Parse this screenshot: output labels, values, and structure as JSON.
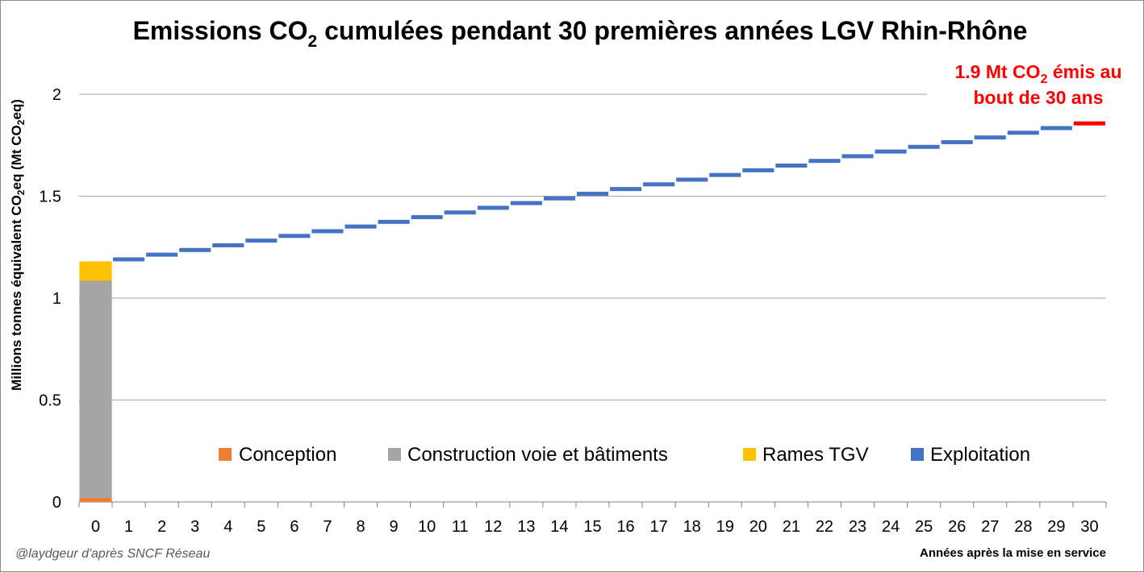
{
  "chart_data": {
    "type": "bar",
    "title_prefix": "Emissions CO",
    "title_sub": "2",
    "title_suffix": " cumulées pendant 30 premières années LGV Rhin-Rhône",
    "ylabel_prefix": "Millions tonnes équivalent CO",
    "ylabel_sub": "2",
    "ylabel_suffix": "eq (Mt CO",
    "ylabel_sub2": "2",
    "ylabel_end": "eq)",
    "xlabel": "Années après la mise en service",
    "ylim": [
      0,
      2.0
    ],
    "yticks": [
      0,
      0.5,
      1,
      1.5,
      2
    ],
    "ytick_labels": [
      "0",
      "0.5",
      "1",
      "1.5",
      "2"
    ],
    "categories": [
      "0",
      "1",
      "2",
      "3",
      "4",
      "5",
      "6",
      "7",
      "8",
      "9",
      "10",
      "11",
      "12",
      "13",
      "14",
      "15",
      "16",
      "17",
      "18",
      "19",
      "20",
      "21",
      "22",
      "23",
      "24",
      "25",
      "26",
      "27",
      "28",
      "29",
      "30"
    ],
    "year0_stack": [
      {
        "name": "Conception",
        "value": 0.02,
        "color": "#ED7D31"
      },
      {
        "name": "Construction voie et bâtiments",
        "value": 1.065,
        "color": "#A5A5A5"
      },
      {
        "name": "Rames TGV",
        "value": 0.095,
        "color": "#FFC000"
      }
    ],
    "exploitation": {
      "name": "Exploitation",
      "color": "#4472C4",
      "cumulative_values": [
        1.19,
        1.213,
        1.236,
        1.259,
        1.282,
        1.305,
        1.328,
        1.351,
        1.374,
        1.397,
        1.42,
        1.443,
        1.466,
        1.489,
        1.512,
        1.535,
        1.558,
        1.581,
        1.604,
        1.627,
        1.65,
        1.673,
        1.696,
        1.719,
        1.742,
        1.765,
        1.788,
        1.811,
        1.834
      ],
      "final_value": 1.857,
      "final_color": "#FF0000"
    },
    "legend": [
      {
        "name": "Conception",
        "color": "#ED7D31"
      },
      {
        "name": "Construction voie et bâtiments",
        "color": "#A5A5A5"
      },
      {
        "name": "Rames TGV",
        "color": "#FFC000"
      },
      {
        "name": "Exploitation",
        "color": "#4472C4"
      }
    ],
    "annotation_line1_prefix": "1.9 Mt CO",
    "annotation_line1_sub": "2",
    "annotation_line1_suffix": " émis au",
    "annotation_line2": "bout de 30 ans",
    "credit": "@laydgeur d'après SNCF Réseau"
  }
}
